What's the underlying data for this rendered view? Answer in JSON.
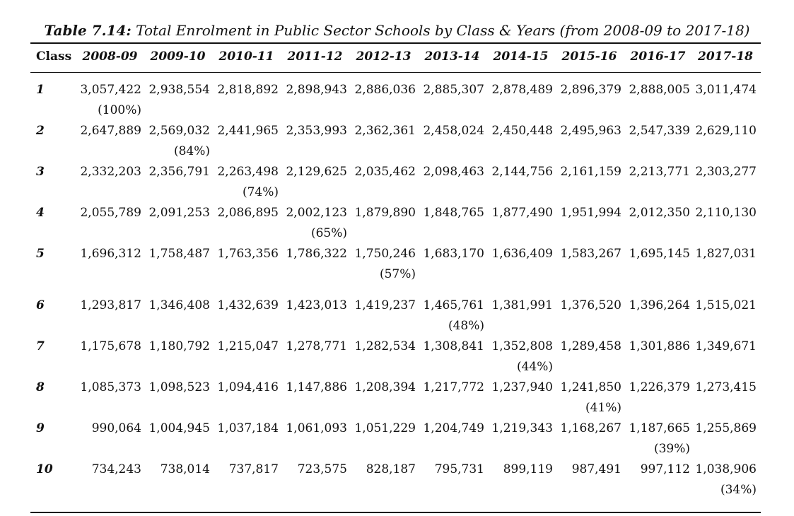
{
  "caption": {
    "label": "Table 7.14:",
    "text": "Total Enrolment in Public Sector Schools by Class & Years (from 2008-09 to 2017-18)"
  },
  "table": {
    "class_header": "Class",
    "years": [
      "2008-09",
      "2009-10",
      "2010-11",
      "2011-12",
      "2012-13",
      "2013-14",
      "2014-15",
      "2015-16",
      "2016-17",
      "2017-18"
    ],
    "rows": [
      {
        "class": "1",
        "values": [
          "3,057,422",
          "2,938,554",
          "2,818,892",
          "2,898,943",
          "2,886,036",
          "2,885,307",
          "2,878,489",
          "2,896,379",
          "2,888,005",
          "3,011,474"
        ],
        "pct": [
          "(100%)",
          "",
          "",
          "",
          "",
          "",
          "",
          "",
          "",
          ""
        ]
      },
      {
        "class": "2",
        "values": [
          "2,647,889",
          "2,569,032",
          "2,441,965",
          "2,353,993",
          "2,362,361",
          "2,458,024",
          "2,450,448",
          "2,495,963",
          "2,547,339",
          "2,629,110"
        ],
        "pct": [
          "",
          "(84%)",
          "",
          "",
          "",
          "",
          "",
          "",
          "",
          ""
        ]
      },
      {
        "class": "3",
        "values": [
          "2,332,203",
          "2,356,791",
          "2,263,498",
          "2,129,625",
          "2,035,462",
          "2,098,463",
          "2,144,756",
          "2,161,159",
          "2,213,771",
          "2,303,277"
        ],
        "pct": [
          "",
          "",
          "(74%)",
          "",
          "",
          "",
          "",
          "",
          "",
          ""
        ]
      },
      {
        "class": "4",
        "values": [
          "2,055,789",
          "2,091,253",
          "2,086,895",
          "2,002,123",
          "1,879,890",
          "1,848,765",
          "1,877,490",
          "1,951,994",
          "2,012,350",
          "2,110,130"
        ],
        "pct": [
          "",
          "",
          "",
          "(65%)",
          "",
          "",
          "",
          "",
          "",
          ""
        ]
      },
      {
        "class": "5",
        "values": [
          "1,696,312",
          "1,758,487",
          "1,763,356",
          "1,786,322",
          "1,750,246",
          "1,683,170",
          "1,636,409",
          "1,583,267",
          "1,695,145",
          "1,827,031"
        ],
        "pct": [
          "",
          "",
          "",
          "",
          "(57%)",
          "",
          "",
          "",
          "",
          ""
        ]
      },
      {
        "class": "6",
        "values": [
          "1,293,817",
          "1,346,408",
          "1,432,639",
          "1,423,013",
          "1,419,237",
          "1,465,761",
          "1,381,991",
          "1,376,520",
          "1,396,264",
          "1,515,021"
        ],
        "pct": [
          "",
          "",
          "",
          "",
          "",
          "(48%)",
          "",
          "",
          "",
          ""
        ]
      },
      {
        "class": "7",
        "values": [
          "1,175,678",
          "1,180,792",
          "1,215,047",
          "1,278,771",
          "1,282,534",
          "1,308,841",
          "1,352,808",
          "1,289,458",
          "1,301,886",
          "1,349,671"
        ],
        "pct": [
          "",
          "",
          "",
          "",
          "",
          "",
          "(44%)",
          "",
          "",
          ""
        ]
      },
      {
        "class": "8",
        "values": [
          "1,085,373",
          "1,098,523",
          "1,094,416",
          "1,147,886",
          "1,208,394",
          "1,217,772",
          "1,237,940",
          "1,241,850",
          "1,226,379",
          "1,273,415"
        ],
        "pct": [
          "",
          "",
          "",
          "",
          "",
          "",
          "",
          "(41%)",
          "",
          ""
        ]
      },
      {
        "class": "9",
        "values": [
          "990,064",
          "1,004,945",
          "1,037,184",
          "1,061,093",
          "1,051,229",
          "1,204,749",
          "1,219,343",
          "1,168,267",
          "1,187,665",
          "1,255,869"
        ],
        "pct": [
          "",
          "",
          "",
          "",
          "",
          "",
          "",
          "",
          "(39%)",
          ""
        ]
      },
      {
        "class": "10",
        "values": [
          "734,243",
          "738,014",
          "737,817",
          "723,575",
          "828,187",
          "795,731",
          "899,119",
          "987,491",
          "997,112",
          "1,038,906"
        ],
        "pct": [
          "",
          "",
          "",
          "",
          "",
          "",
          "",
          "",
          "",
          "(34%)"
        ]
      }
    ]
  }
}
